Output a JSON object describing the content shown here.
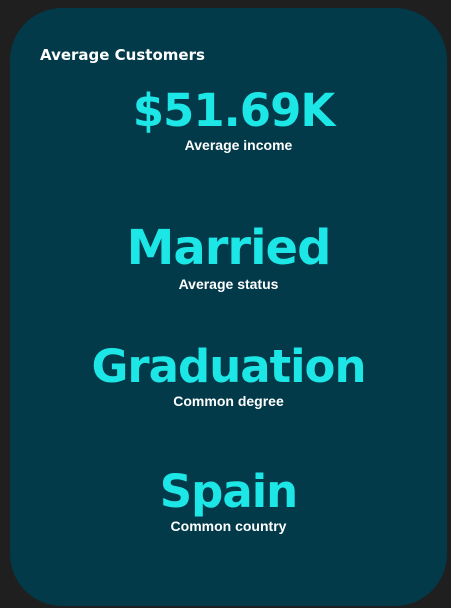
{
  "card": {
    "title": "Average Customers",
    "background_color": "#033a4a",
    "accent_color": "#1de6e6"
  },
  "kpis": [
    {
      "value": "$51.69K",
      "label": "Average income"
    },
    {
      "value": "Married",
      "label": "Average status"
    },
    {
      "value": "Graduation",
      "label": "Common degree"
    },
    {
      "value": "Spain",
      "label": "Common country"
    }
  ]
}
